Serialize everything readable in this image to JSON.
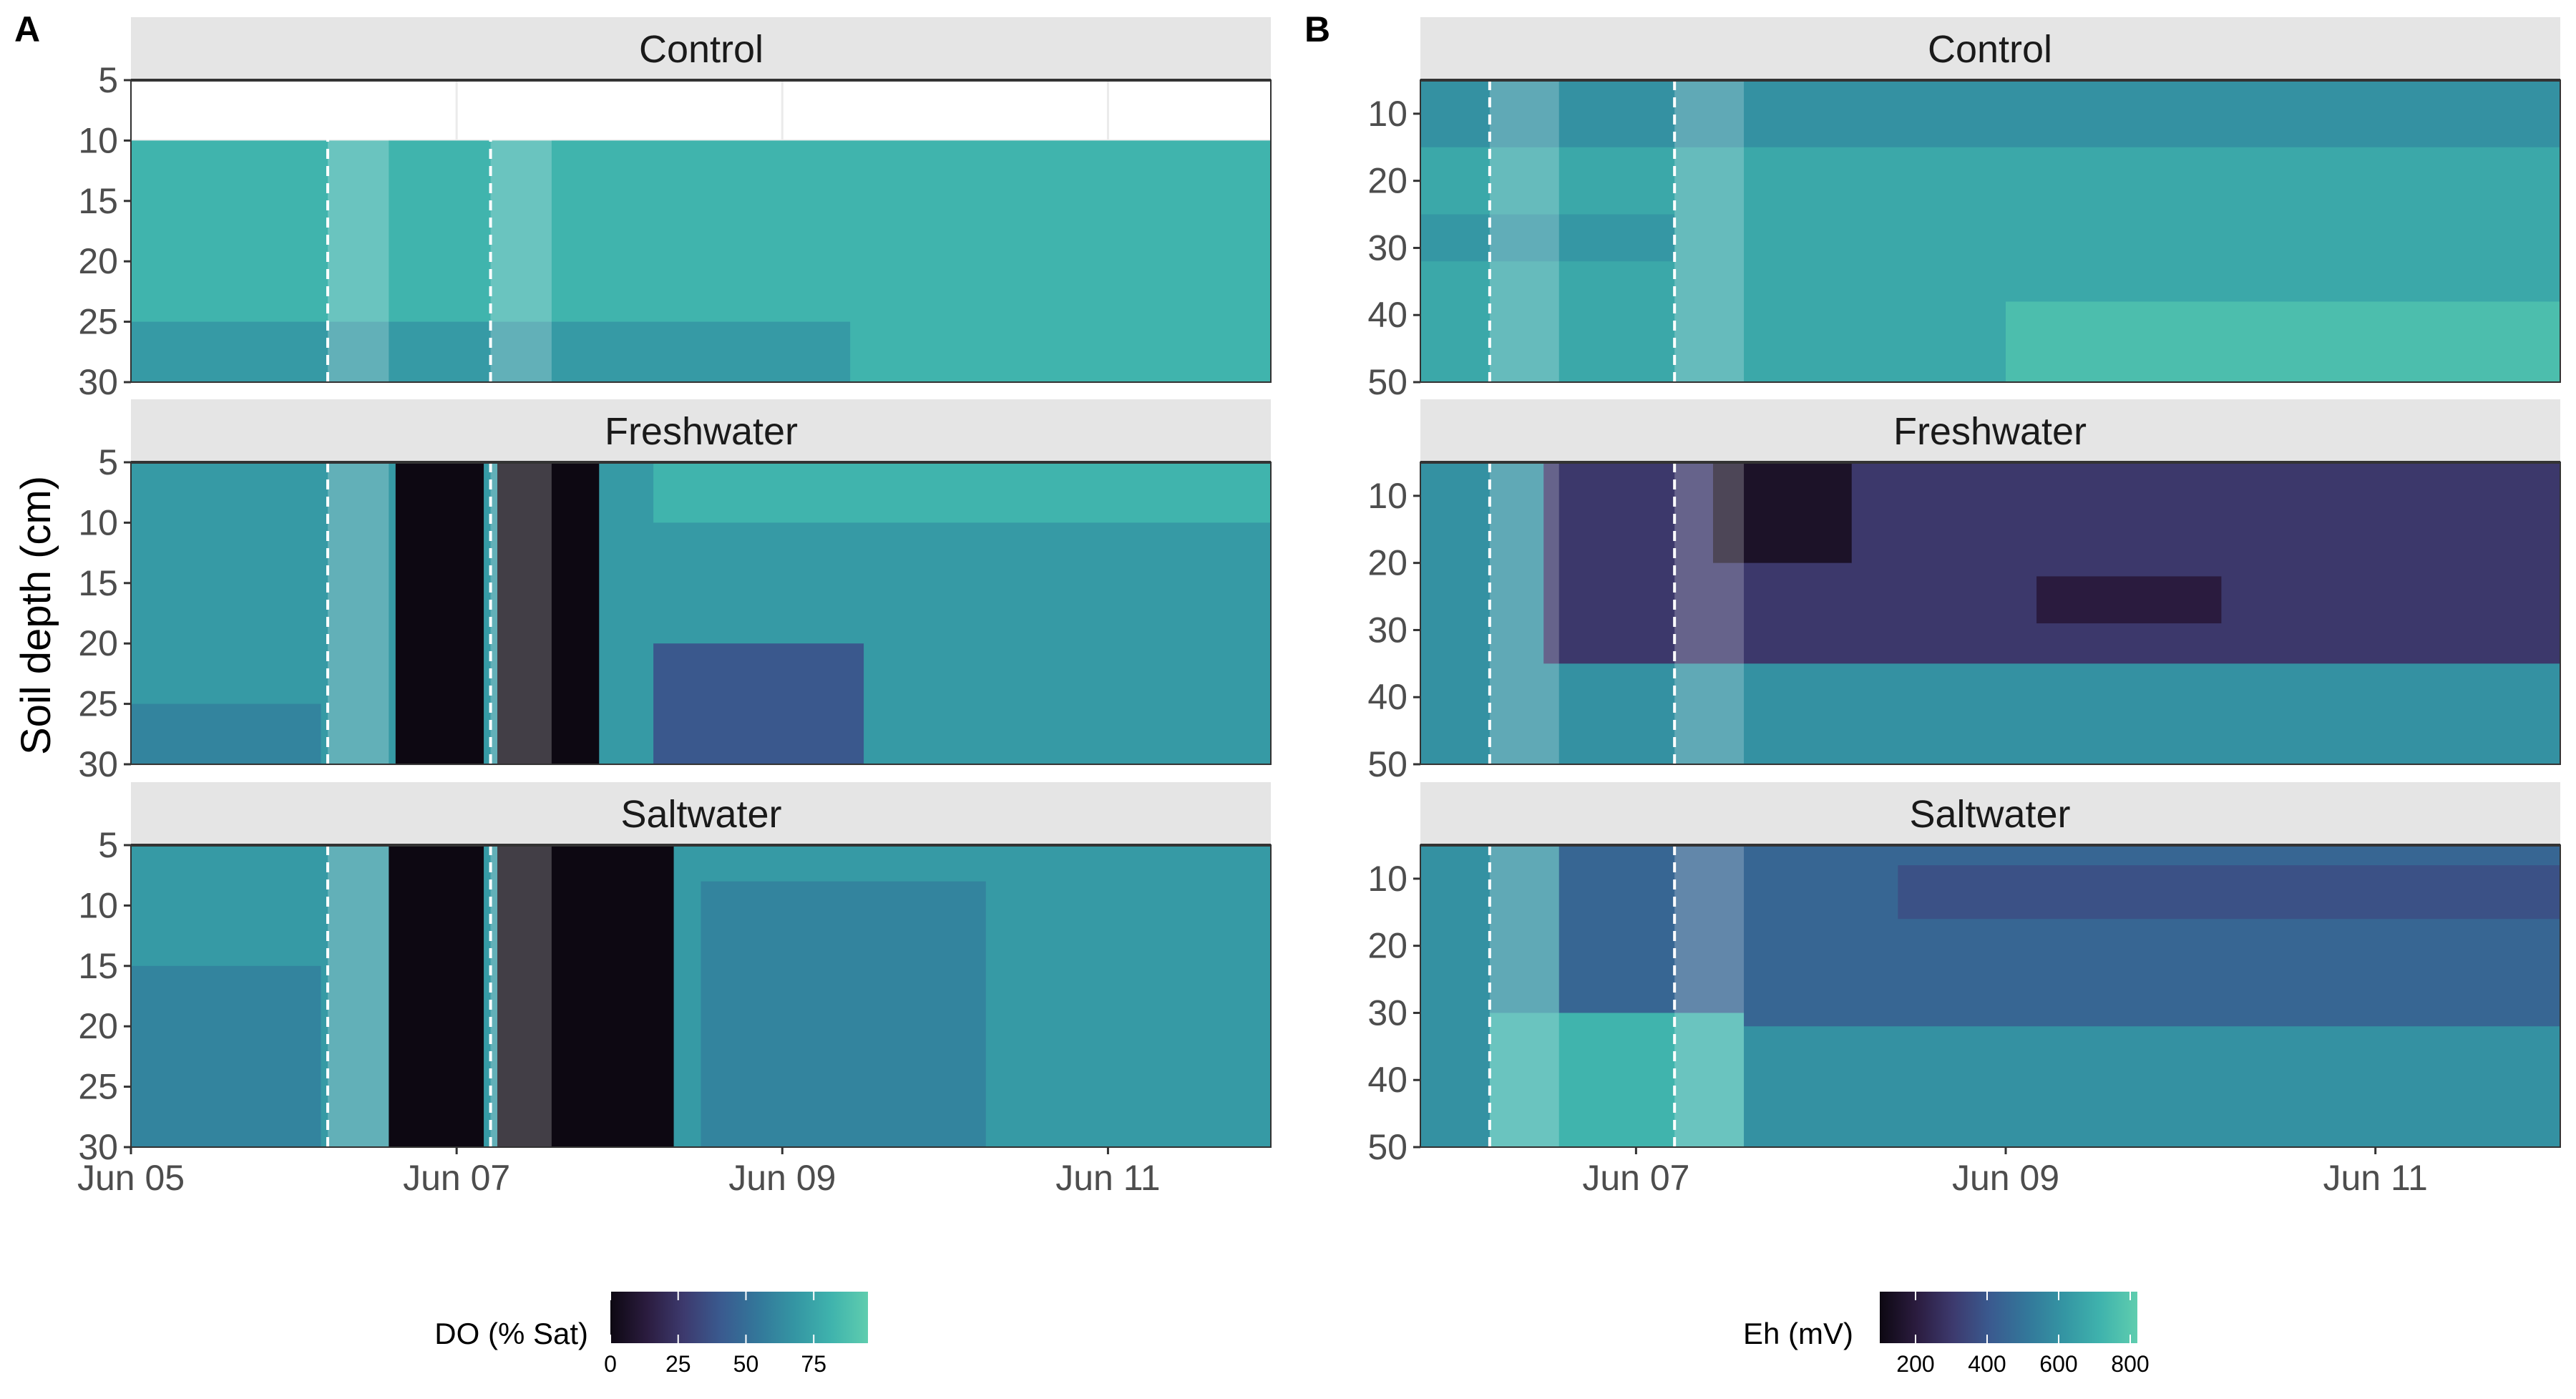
{
  "ylabel": "Soil depth (cm)",
  "panel_labels": [
    "A",
    "B"
  ],
  "colors": {
    "strip_bg": "#e5e5e5",
    "scale": [
      "#0d0812",
      "#2b1c3f",
      "#3d3a6e",
      "#3a5a8f",
      "#33779a",
      "#3495a3",
      "#3fb3ad",
      "#5fcdae"
    ],
    "dashed": "#ffffff",
    "highlight": "#ffffff"
  },
  "chart_data": [
    {
      "type": "heatmap",
      "panel": "A",
      "variable": "DO (% Sat)",
      "facets": [
        "Control",
        "Freshwater",
        "Saltwater"
      ],
      "x_type": "date",
      "xlim": [
        "2023-06-05T00:00",
        "2023-06-12T00:00"
      ],
      "x_ticks": [
        {
          "value": "2023-06-05T00:00",
          "label": "Jun 05"
        },
        {
          "value": "2023-06-07T00:00",
          "label": "Jun 07"
        },
        {
          "value": "2023-06-09T00:00",
          "label": "Jun 09"
        },
        {
          "value": "2023-06-11T00:00",
          "label": "Jun 11"
        }
      ],
      "y_reversed": true,
      "ylim": [
        5,
        30
      ],
      "y_ticks": [
        5,
        10,
        15,
        20,
        25,
        30
      ],
      "event_lines": [
        "2023-06-06T05:00",
        "2023-06-07T05:00"
      ],
      "event_windows": [
        [
          "2023-06-06T05:00",
          "2023-06-06T14:00"
        ],
        [
          "2023-06-07T05:00",
          "2023-06-07T14:00"
        ]
      ],
      "legend": {
        "title": "DO (% Sat)",
        "range": [
          0,
          95
        ],
        "ticks": [
          0,
          25,
          50,
          75
        ]
      },
      "contours": {
        "Control": [
          {
            "value": 82,
            "x": [
              "2023-06-05T00:00",
              "2023-06-12T00:00"
            ],
            "y": [
              10,
              30
            ]
          },
          {
            "value": 70,
            "x": [
              "2023-06-05T00:00",
              "2023-06-09T10:00"
            ],
            "y": [
              25,
              30
            ]
          }
        ],
        "Freshwater": [
          {
            "value": 70,
            "x": [
              "2023-06-05T00:00",
              "2023-06-12T00:00"
            ],
            "y": [
              5,
              30
            ]
          },
          {
            "value": 82,
            "x": [
              "2023-06-08T05:00",
              "2023-06-12T00:00"
            ],
            "y": [
              5,
              10
            ]
          },
          {
            "value": 60,
            "x": [
              "2023-06-05T00:00",
              "2023-06-06T04:00"
            ],
            "y": [
              25,
              30
            ]
          },
          {
            "value": 0,
            "x": [
              "2023-06-06T15:00",
              "2023-06-07T04:00"
            ],
            "y": [
              5,
              30
            ]
          },
          {
            "value": 0,
            "x": [
              "2023-06-07T06:00",
              "2023-06-07T21:00"
            ],
            "y": [
              5,
              30
            ]
          },
          {
            "value": 40,
            "x": [
              "2023-06-08T05:00",
              "2023-06-09T12:00"
            ],
            "y": [
              20,
              30
            ]
          }
        ],
        "Saltwater": [
          {
            "value": 70,
            "x": [
              "2023-06-05T00:00",
              "2023-06-12T00:00"
            ],
            "y": [
              5,
              30
            ]
          },
          {
            "value": 60,
            "x": [
              "2023-06-05T00:00",
              "2023-06-06T04:00"
            ],
            "y": [
              15,
              30
            ]
          },
          {
            "value": 0,
            "x": [
              "2023-06-06T14:00",
              "2023-06-07T04:00"
            ],
            "y": [
              5,
              30
            ]
          },
          {
            "value": 0,
            "x": [
              "2023-06-07T06:00",
              "2023-06-08T08:00"
            ],
            "y": [
              5,
              30
            ]
          },
          {
            "value": 60,
            "x": [
              "2023-06-08T12:00",
              "2023-06-10T06:00"
            ],
            "y": [
              8,
              30
            ]
          }
        ]
      }
    },
    {
      "type": "heatmap",
      "panel": "B",
      "variable": "Eh (mV)",
      "facets": [
        "Control",
        "Freshwater",
        "Saltwater"
      ],
      "x_type": "date",
      "xlim": [
        "2023-06-05T20:00",
        "2023-06-12T00:00"
      ],
      "x_ticks": [
        {
          "value": "2023-06-07T00:00",
          "label": "Jun 07"
        },
        {
          "value": "2023-06-09T00:00",
          "label": "Jun 09"
        },
        {
          "value": "2023-06-11T00:00",
          "label": "Jun 11"
        }
      ],
      "y_reversed": true,
      "ylim": [
        5,
        50
      ],
      "y_ticks": [
        10,
        20,
        30,
        40,
        50
      ],
      "event_lines": [
        "2023-06-06T05:00",
        "2023-06-07T05:00"
      ],
      "event_windows": [
        [
          "2023-06-06T05:00",
          "2023-06-06T14:00"
        ],
        [
          "2023-06-07T05:00",
          "2023-06-07T14:00"
        ]
      ],
      "legend": {
        "title": "Eh (mV)",
        "range": [
          100,
          820
        ],
        "ticks": [
          200,
          400,
          600,
          800
        ]
      },
      "contours": {
        "Control": [
          {
            "value": 680,
            "x": [
              "2023-06-05T20:00",
              "2023-06-12T00:00"
            ],
            "y": [
              5,
              50
            ]
          },
          {
            "value": 600,
            "x": [
              "2023-06-05T20:00",
              "2023-06-12T00:00"
            ],
            "y": [
              5,
              15
            ]
          },
          {
            "value": 620,
            "x": [
              "2023-06-05T20:00",
              "2023-06-07T05:00"
            ],
            "y": [
              25,
              32
            ]
          },
          {
            "value": 760,
            "x": [
              "2023-06-09T00:00",
              "2023-06-12T00:00"
            ],
            "y": [
              38,
              50
            ]
          }
        ],
        "Freshwater": [
          {
            "value": 600,
            "x": [
              "2023-06-05T20:00",
              "2023-06-12T00:00"
            ],
            "y": [
              5,
              50
            ]
          },
          {
            "value": 300,
            "x": [
              "2023-06-06T12:00",
              "2023-06-12T00:00"
            ],
            "y": [
              5,
              35
            ]
          },
          {
            "value": 150,
            "x": [
              "2023-06-07T10:00",
              "2023-06-08T04:00"
            ],
            "y": [
              5,
              20
            ]
          },
          {
            "value": 200,
            "x": [
              "2023-06-09T04:00",
              "2023-06-10T04:00"
            ],
            "y": [
              22,
              29
            ]
          }
        ],
        "Saltwater": [
          {
            "value": 600,
            "x": [
              "2023-06-05T20:00",
              "2023-06-12T00:00"
            ],
            "y": [
              5,
              50
            ]
          },
          {
            "value": 450,
            "x": [
              "2023-06-06T14:00",
              "2023-06-12T00:00"
            ],
            "y": [
              5,
              32
            ]
          },
          {
            "value": 380,
            "x": [
              "2023-06-08T10:00",
              "2023-06-12T00:00"
            ],
            "y": [
              8,
              16
            ]
          },
          {
            "value": 720,
            "x": [
              "2023-06-06T05:00",
              "2023-06-07T14:00"
            ],
            "y": [
              30,
              50
            ]
          }
        ]
      }
    }
  ]
}
